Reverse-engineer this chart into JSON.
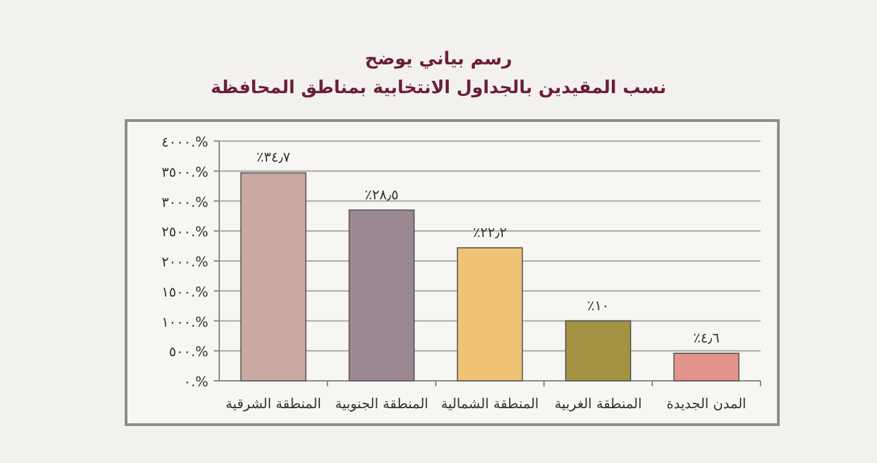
{
  "chart_data": {
    "type": "bar",
    "title": "رسم بياني يوضح",
    "subtitle": "نسب المقيدين بالجداول الانتخابية بمناطق المحافظة",
    "categories": [
      "المنطقة الشرقية",
      "المنطقة الجنوبية",
      "المنطقة الشمالية",
      "المنطقة الغربية",
      "المدن الجديدة"
    ],
    "values": [
      34.7,
      28.5,
      22.2,
      10,
      4.6
    ],
    "colors": [
      "#c9a9a2",
      "#9c8893",
      "#f0c273",
      "#a39343",
      "#e3948c"
    ],
    "value_labels": [
      "٪٣٤٫٧",
      "٪٢٨٫٥",
      "٪٢٢٫٢",
      "٪١٠",
      "٪٤٫٦"
    ],
    "ylim": [
      0,
      40
    ],
    "yticks": [
      {
        "value": 0,
        "label": "٠.%"
      },
      {
        "value": 5,
        "label": "٥٠٠.%"
      },
      {
        "value": 10,
        "label": "١٠٠٠.%"
      },
      {
        "value": 15,
        "label": "١٥٠٠.%"
      },
      {
        "value": 20,
        "label": "٢٠٠٠.%"
      },
      {
        "value": 25,
        "label": "٢٥٠٠.%"
      },
      {
        "value": 30,
        "label": "٣٠٠٠.%"
      },
      {
        "value": 35,
        "label": "٣٥٠٠.%"
      },
      {
        "value": 40,
        "label": "٤٠٠٠.%"
      }
    ],
    "grid": "y"
  }
}
